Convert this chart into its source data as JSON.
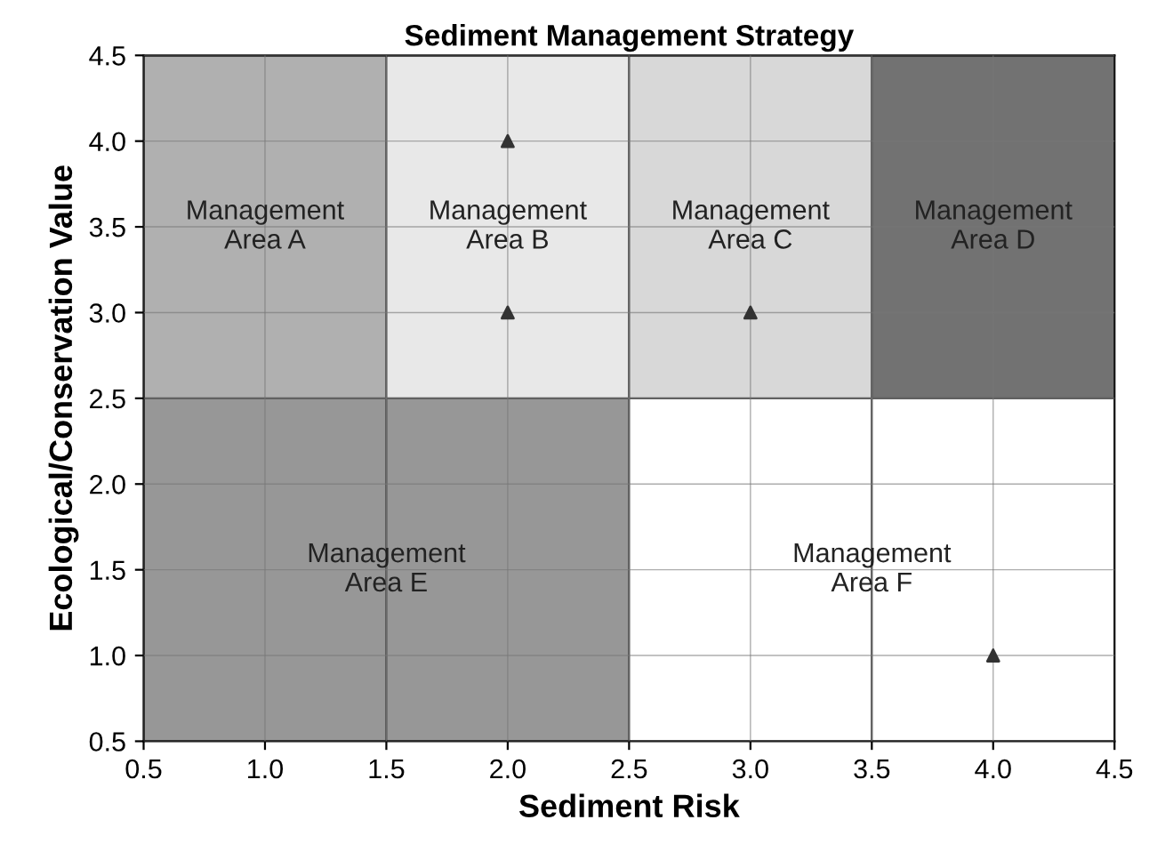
{
  "chart_data": {
    "type": "scatter",
    "title": "Sediment Management Strategy",
    "xlabel": "Sediment Risk",
    "ylabel": "Ecological/Conservation Value",
    "x": [
      2,
      2,
      3,
      4
    ],
    "stacked": true,
    "series": [
      {
        "type": "bar",
        "x": [
          1,
          2,
          3,
          4
        ],
        "values": [
          2.5,
          2.5,
          2.5,
          2.5
        ],
        "colors": [
          "#979797",
          "#979797",
          "#ffffff",
          "#ffffff"
        ]
      },
      {
        "type": "bar",
        "x": [
          1,
          2,
          3,
          4
        ],
        "values": [
          2,
          2,
          2,
          2
        ],
        "colors": [
          "#b0b0b0",
          "#e8e8e8",
          "#d8d8d8",
          "#727272"
        ]
      },
      {
        "color": "#333333",
        "values": [
          4,
          3,
          3,
          1
        ]
      }
    ],
    "marker": "triangle",
    "grid": true,
    "xlim": [
      0.5,
      4.5
    ],
    "ylim": [
      0.5,
      4.5
    ],
    "xticks": [
      0.5,
      {
        "value": 1,
        "label": "1.0"
      },
      1.5,
      {
        "value": 2,
        "label": "2.0"
      },
      2.5,
      {
        "value": 3,
        "label": "3.0"
      },
      3.5,
      {
        "value": 4,
        "label": "4.0"
      },
      4.5
    ],
    "yticks": [
      0.5,
      {
        "value": 1,
        "label": "1.0"
      },
      1.5,
      {
        "value": 2,
        "label": "2.0"
      },
      2.5,
      {
        "value": 3,
        "label": "3.0"
      },
      3.5,
      {
        "value": 4,
        "label": "4.0"
      },
      4.5
    ],
    "annotations": [
      "Management\nArea A",
      "Management\nArea B",
      "Management\nArea C",
      "Management\nArea D",
      "Management\nArea E",
      "Management\nArea F"
    ]
  }
}
